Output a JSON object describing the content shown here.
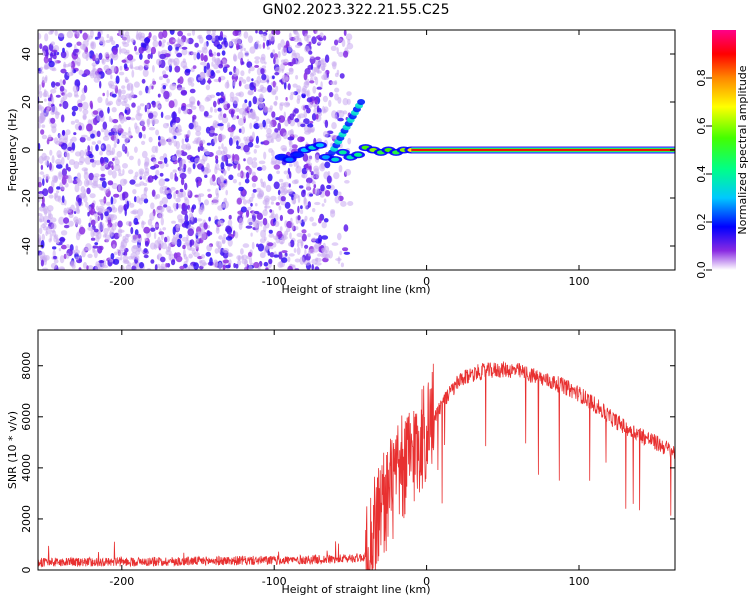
{
  "chart_data": [
    {
      "type": "heatmap",
      "title": "GN02.2023.322.21.55.C25",
      "xlabel": "Height of straight line (km)",
      "ylabel": "Frequency (Hz)",
      "xlim": [
        -255,
        163
      ],
      "ylim": [
        -50,
        50
      ],
      "xticks": [
        -200,
        -100,
        0,
        100
      ],
      "yticks": [
        -40,
        -20,
        0,
        20,
        40
      ],
      "colorbar": {
        "label": "Normalized spectral amplitude",
        "range": [
          0.0,
          1.0
        ],
        "ticks": [
          "0.0",
          "0.2",
          "0.4",
          "0.6",
          "0.8"
        ],
        "tick_values": [
          0.0,
          0.2,
          0.4,
          0.6,
          0.8
        ]
      },
      "features": {
        "noise_region_x": [
          -255,
          -65
        ],
        "carrier_frequency_hz": 0,
        "carrier_start_x": -10,
        "carrier_end_x": 163,
        "diagonal_blob_end": {
          "x": -43,
          "y": 20
        },
        "carrier_tone_amplitude": 0.9
      }
    },
    {
      "type": "line",
      "xlabel": "Height of straight line (km)",
      "ylabel": "SNR (10 * v/v)",
      "xlim": [
        -255,
        163
      ],
      "ylim": [
        0,
        9400
      ],
      "xticks": [
        -200,
        -100,
        0,
        100
      ],
      "yticks": [
        0,
        2000,
        4000,
        6000,
        8000
      ],
      "color": "#e83030",
      "series": [
        {
          "name": "SNR",
          "x": [
            -255,
            -200,
            -150,
            -100,
            -60,
            -40,
            -30,
            -20,
            -10,
            0,
            10,
            20,
            30,
            40,
            50,
            60,
            70,
            80,
            90,
            100,
            110,
            120,
            130,
            140,
            150,
            163
          ],
          "y": [
            300,
            320,
            350,
            380,
            420,
            500,
            2500,
            3500,
            4500,
            5500,
            6500,
            7300,
            7700,
            7800,
            7850,
            7800,
            7600,
            7400,
            7200,
            6900,
            6500,
            6000,
            5600,
            5300,
            5000,
            4600
          ]
        }
      ]
    }
  ]
}
